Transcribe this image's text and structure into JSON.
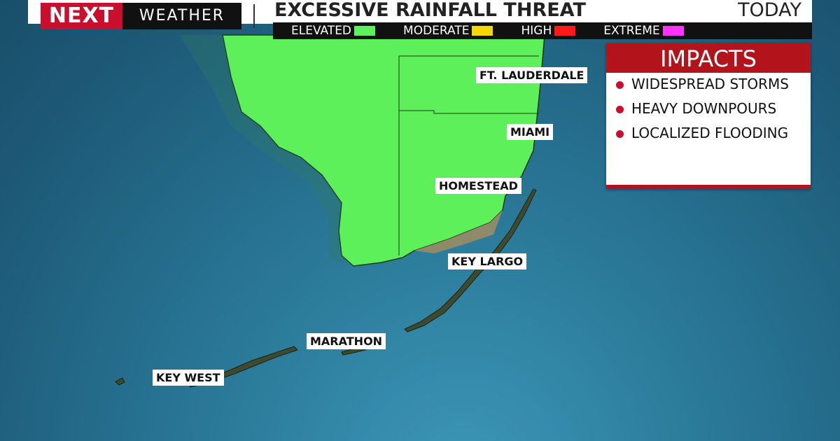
{
  "header": {
    "brand_logo": "NEXT",
    "brand_name": "WEATHER",
    "title": "EXCESSIVE RAINFALL THREAT",
    "timeframe": "TODAY"
  },
  "legend": [
    {
      "label": "ELEVATED",
      "color": "#5ef05a"
    },
    {
      "label": "MODERATE",
      "color": "#f5d800"
    },
    {
      "label": "HIGH",
      "color": "#ff1a1a"
    },
    {
      "label": "EXTREME",
      "color": "#ff33ff"
    }
  ],
  "cities": [
    "FT. LAUDERDALE",
    "MIAMI",
    "HOMESTEAD",
    "KEY LARGO",
    "MARATHON",
    "KEY WEST"
  ],
  "impacts": {
    "title": "IMPACTS",
    "items": [
      "WIDESPREAD STORMS",
      "HEAVY DOWNPOURS",
      "LOCALIZED FLOODING"
    ]
  }
}
